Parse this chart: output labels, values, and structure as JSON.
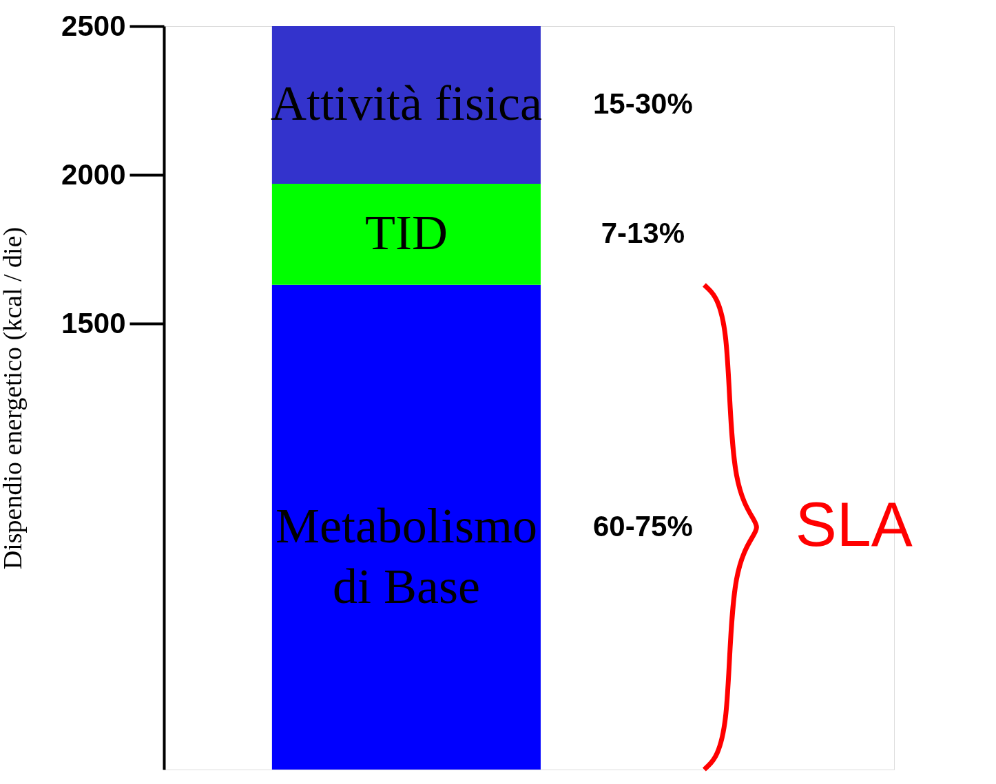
{
  "chart_data": {
    "type": "bar",
    "stacked": true,
    "categories": [
      null
    ],
    "ylabel": "Dispendio energetico (kcal / die)",
    "ylim": [
      0,
      2500
    ],
    "yticks": [
      1500,
      2000,
      2500
    ],
    "grid": false,
    "series": [
      {
        "name": "Metabolismo\ndi Base",
        "color": "#0000ff",
        "values": [
          1630
        ]
      },
      {
        "name": "TID",
        "color": "#00ff00",
        "values": [
          340
        ]
      },
      {
        "name": "Attività fisica",
        "color": "#3333cc",
        "values": [
          530
        ]
      }
    ],
    "annotations": [
      "60-75%",
      "7-13%",
      "15-30%",
      "SLA"
    ]
  }
}
